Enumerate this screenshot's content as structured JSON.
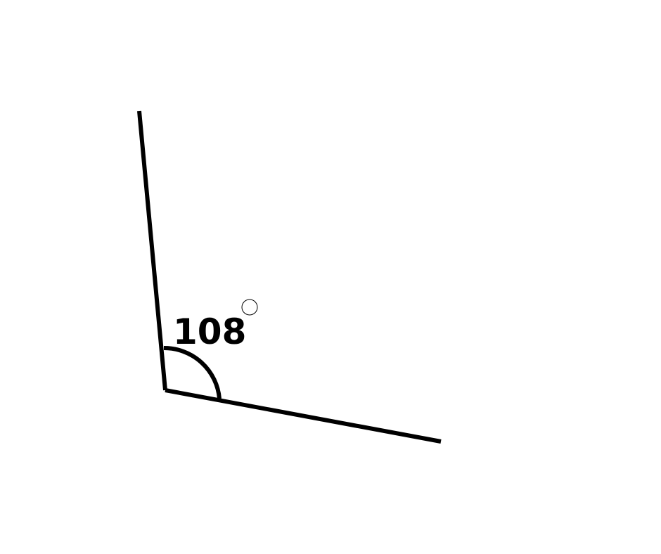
{
  "angle": {
    "label": "108",
    "degree_symbol": "°"
  },
  "colors": {
    "stroke": "#000000",
    "background": "#ffffff"
  }
}
